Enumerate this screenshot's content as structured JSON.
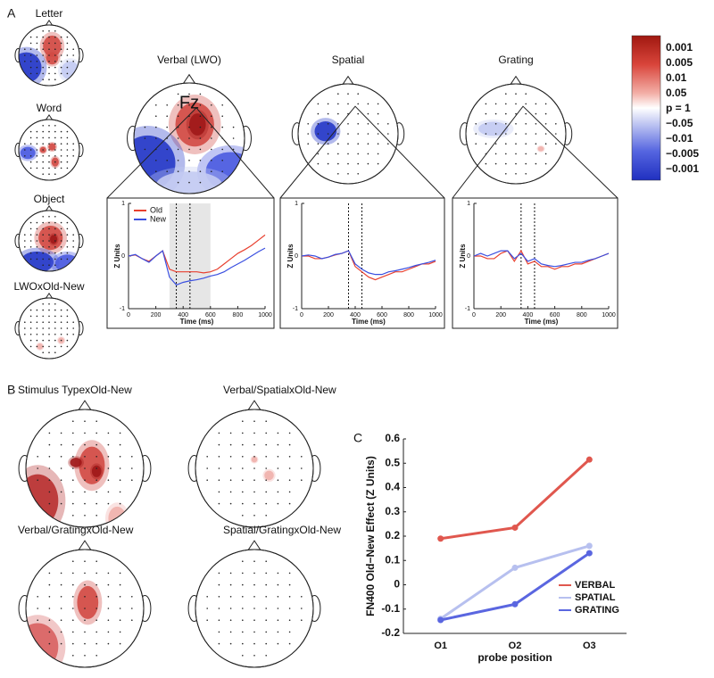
{
  "panel_labels": {
    "a": "A",
    "b": "B",
    "c": "C"
  },
  "panel_a": {
    "small_maps": [
      "Letter",
      "Word",
      "Object",
      "LWOxOld-New"
    ],
    "main_maps": [
      "Verbal (LWO)",
      "Spatial",
      "Grating"
    ],
    "electrode": "Fz",
    "colorbar": [
      "0.001",
      "0.005",
      "0.01",
      "0.05",
      "p = 1",
      "−0.05",
      "−0.01",
      "−0.005",
      "−0.001"
    ]
  },
  "panel_b": {
    "maps": [
      "Stimulus TypexOld-New",
      "Verbal/SpatialxOld-New",
      "Verbal/GratingxOld-New",
      "Spatial/GratingxOld-New"
    ]
  },
  "chart_data": [
    {
      "type": "line",
      "x": [
        0,
        50,
        100,
        150,
        200,
        250,
        300,
        350,
        400,
        450,
        500,
        550,
        600,
        650,
        700,
        750,
        800,
        850,
        900,
        950,
        1000
      ],
      "xlim": [
        0,
        1000
      ],
      "ylim": [
        -1,
        1
      ],
      "xticks": [
        0,
        200,
        400,
        600,
        800,
        1000
      ],
      "yticks": [
        -1,
        0,
        1
      ],
      "xlabel": "Time (ms)",
      "ylabel": "Z Units",
      "vlines": [
        350,
        450
      ],
      "shade": [
        300,
        600
      ],
      "legend": "upper left",
      "series": [
        {
          "name": "Old",
          "color": "#e8402f",
          "values": [
            0,
            0.02,
            -0.05,
            -0.1,
            0,
            0.1,
            -0.25,
            -0.3,
            -0.3,
            -0.3,
            -0.3,
            -0.32,
            -0.3,
            -0.25,
            -0.15,
            -0.05,
            0.05,
            0.12,
            0.2,
            0.3,
            0.4
          ]
        },
        {
          "name": "New",
          "color": "#3a4fe0",
          "values": [
            0,
            0.03,
            -0.05,
            -0.12,
            0,
            0.1,
            -0.4,
            -0.55,
            -0.5,
            -0.47,
            -0.45,
            -0.42,
            -0.38,
            -0.35,
            -0.3,
            -0.22,
            -0.15,
            -0.08,
            0,
            0.08,
            0.15
          ]
        }
      ]
    },
    {
      "type": "line",
      "x": [
        0,
        50,
        100,
        150,
        200,
        250,
        300,
        350,
        400,
        450,
        500,
        550,
        600,
        650,
        700,
        750,
        800,
        850,
        900,
        950,
        1000
      ],
      "xlim": [
        0,
        1000
      ],
      "ylim": [
        -1,
        1
      ],
      "xticks": [
        0,
        200,
        400,
        600,
        800,
        1000
      ],
      "yticks": [
        -1,
        0,
        1
      ],
      "xlabel": "Time (ms)",
      "ylabel": "Z Units",
      "vlines": [
        350,
        450
      ],
      "series": [
        {
          "color": "#e8402f",
          "values": [
            0,
            0,
            -0.05,
            -0.05,
            -0.02,
            0.02,
            0.05,
            0.1,
            -0.2,
            -0.3,
            -0.4,
            -0.45,
            -0.4,
            -0.35,
            -0.3,
            -0.3,
            -0.25,
            -0.2,
            -0.15,
            -0.15,
            -0.1
          ]
        },
        {
          "color": "#3a4fe0",
          "values": [
            0,
            0.02,
            0,
            -0.05,
            -0.02,
            0.03,
            0.05,
            0.1,
            -0.15,
            -0.25,
            -0.32,
            -0.35,
            -0.35,
            -0.3,
            -0.28,
            -0.25,
            -0.22,
            -0.18,
            -0.15,
            -0.12,
            -0.08
          ]
        }
      ]
    },
    {
      "type": "line",
      "x": [
        0,
        50,
        100,
        150,
        200,
        250,
        300,
        350,
        400,
        450,
        500,
        550,
        600,
        650,
        700,
        750,
        800,
        850,
        900,
        950,
        1000
      ],
      "xlim": [
        0,
        1000
      ],
      "ylim": [
        -1,
        1
      ],
      "xticks": [
        0,
        200,
        400,
        600,
        800,
        1000
      ],
      "yticks": [
        -1,
        0,
        1
      ],
      "xlabel": "Time (ms)",
      "ylabel": "Z Units",
      "vlines": [
        350,
        450
      ],
      "series": [
        {
          "color": "#e8402f",
          "values": [
            0,
            0,
            -0.05,
            -0.05,
            0.05,
            0.1,
            -0.1,
            0.1,
            -0.15,
            -0.1,
            -0.2,
            -0.2,
            -0.25,
            -0.2,
            -0.2,
            -0.15,
            -0.15,
            -0.1,
            -0.05,
            0,
            0.05
          ]
        },
        {
          "color": "#3a4fe0",
          "values": [
            0,
            0.05,
            0,
            0.05,
            0.1,
            0.1,
            -0.05,
            0.05,
            -0.1,
            -0.05,
            -0.15,
            -0.18,
            -0.2,
            -0.18,
            -0.15,
            -0.12,
            -0.12,
            -0.08,
            -0.05,
            0,
            0.05
          ]
        }
      ]
    },
    {
      "type": "line",
      "categories": [
        "O1",
        "O2",
        "O3"
      ],
      "ylim": [
        -0.2,
        0.6
      ],
      "yticks": [
        -0.2,
        -0.1,
        0,
        0.1,
        0.2,
        0.3,
        0.4,
        0.5,
        0.6
      ],
      "xlabel": "probe position",
      "ylabel": "FN400 Old−New Effect (Z Units)",
      "legend": "lower right",
      "markers": true,
      "series": [
        {
          "name": "VERBAL",
          "color": "#e0574e",
          "values": [
            0.19,
            0.235,
            0.515
          ]
        },
        {
          "name": "SPATIAL",
          "color": "#b7c0ef",
          "values": [
            -0.14,
            0.07,
            0.16
          ]
        },
        {
          "name": "GRATING",
          "color": "#5a66e0",
          "values": [
            -0.145,
            -0.08,
            0.13
          ]
        }
      ]
    }
  ]
}
